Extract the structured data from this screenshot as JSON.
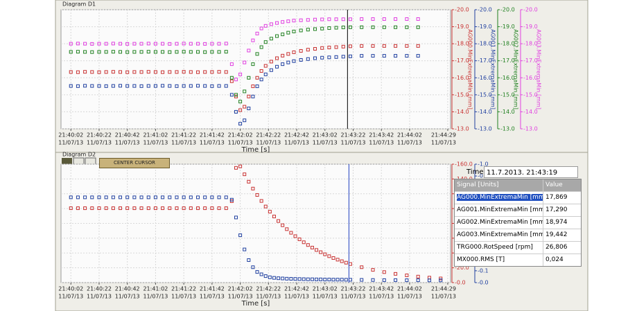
{
  "chart_data": [
    {
      "type": "scatter",
      "title": "Diagram D1",
      "xlabel": "Time [s]",
      "grid": true,
      "cursor": 78198,
      "xlim": [
        77995,
        78271
      ],
      "xticks": [
        {
          "value": 78002,
          "label": "21:40:02",
          "date": "11/07/13"
        },
        {
          "value": 78022,
          "label": "21:40:22",
          "date": "11/07/13"
        },
        {
          "value": 78042,
          "label": "21:40:42",
          "date": "11/07/13"
        },
        {
          "value": 78062,
          "label": "21:41:02",
          "date": "11/07/13"
        },
        {
          "value": 78082,
          "label": "21:41:22",
          "date": "11/07/13"
        },
        {
          "value": 78102,
          "label": "21:41:42",
          "date": "11/07/13"
        },
        {
          "value": 78122,
          "label": "21:42:02",
          "date": "11/07/13"
        },
        {
          "value": 78142,
          "label": "21:42:22",
          "date": "11/07/13"
        },
        {
          "value": 78162,
          "label": "21:42:42",
          "date": "11/07/13"
        },
        {
          "value": 78182,
          "label": "21:43:02",
          "date": "11/07/13"
        },
        {
          "value": 78202,
          "label": "21:43:22",
          "date": "11/07/13"
        },
        {
          "value": 78222,
          "label": "21:43:42",
          "date": "11/07/13"
        },
        {
          "value": 78242,
          "label": "21:44:02",
          "date": "11/07/13"
        },
        {
          "value": 78269,
          "label": "21:44:29",
          "date": "11/07/13"
        }
      ],
      "x": [
        78002,
        78007,
        78012,
        78017,
        78022,
        78027,
        78032,
        78037,
        78042,
        78047,
        78052,
        78057,
        78062,
        78067,
        78072,
        78077,
        78082,
        78087,
        78092,
        78097,
        78102,
        78107,
        78112,
        78116,
        78119,
        78122,
        78125,
        78128,
        78131,
        78134,
        78137,
        78140,
        78144,
        78148,
        78152,
        78156,
        78160,
        78165,
        78170,
        78175,
        78180,
        78185,
        78190,
        78195,
        78200,
        78208,
        78216,
        78224,
        78232,
        78240,
        78248
      ],
      "series": [
        {
          "name": "AG000.MinExtremaMin [mm]",
          "color": "#c83232",
          "ylim": [
            -13,
            -20
          ],
          "yticks": [
            {
              "value": -20,
              "label": "-20.0"
            },
            {
              "value": -19,
              "label": "-19.0"
            },
            {
              "value": -18,
              "label": "-18.0"
            },
            {
              "value": -17,
              "label": "-17.0"
            },
            {
              "value": -16,
              "label": "-16.0"
            },
            {
              "value": -15,
              "label": "-15.0"
            },
            {
              "value": -14,
              "label": "-14.0"
            },
            {
              "value": -13,
              "label": "-13.0"
            }
          ],
          "values": [
            -16.34,
            -16.33,
            -16.35,
            -16.34,
            -16.33,
            -16.34,
            -16.35,
            -16.34,
            -16.33,
            -16.34,
            -16.34,
            -16.35,
            -16.34,
            -16.33,
            -16.34,
            -16.34,
            -16.35,
            -16.34,
            -16.33,
            -16.34,
            -16.34,
            -16.35,
            -16.34,
            -15.8,
            -14.9,
            -14.1,
            -14.3,
            -14.9,
            -15.5,
            -16.0,
            -16.4,
            -16.7,
            -16.95,
            -17.15,
            -17.3,
            -17.4,
            -17.5,
            -17.58,
            -17.65,
            -17.7,
            -17.75,
            -17.78,
            -17.8,
            -17.83,
            -17.85,
            -17.87,
            -17.87,
            -17.87,
            -17.87,
            -17.87,
            -17.87
          ]
        },
        {
          "name": "AG001.MinExtremaMin [mm]",
          "color": "#2040a0",
          "ylim": [
            -13,
            -20
          ],
          "yticks": [
            {
              "value": -20,
              "label": "-20.0"
            },
            {
              "value": -19,
              "label": "-19.0"
            },
            {
              "value": -18,
              "label": "-18.0"
            },
            {
              "value": -17,
              "label": "-17.0"
            },
            {
              "value": -16,
              "label": "-16.0"
            },
            {
              "value": -15,
              "label": "-15.0"
            },
            {
              "value": -14,
              "label": "-14.0"
            },
            {
              "value": -13,
              "label": "-13.0"
            }
          ],
          "values": [
            -15.52,
            -15.51,
            -15.53,
            -15.52,
            -15.52,
            -15.51,
            -15.52,
            -15.53,
            -15.52,
            -15.52,
            -15.51,
            -15.52,
            -15.52,
            -15.53,
            -15.52,
            -15.51,
            -15.52,
            -15.52,
            -15.53,
            -15.52,
            -15.51,
            -15.52,
            -15.52,
            -15.0,
            -14.0,
            -13.3,
            -13.5,
            -14.2,
            -14.9,
            -15.5,
            -15.9,
            -16.2,
            -16.45,
            -16.65,
            -16.8,
            -16.9,
            -16.98,
            -17.05,
            -17.1,
            -17.15,
            -17.18,
            -17.2,
            -17.22,
            -17.24,
            -17.26,
            -17.29,
            -17.29,
            -17.29,
            -17.29,
            -17.29,
            -17.29
          ]
        },
        {
          "name": "AG002.MinExtremaMin [mm]",
          "color": "#208020",
          "ylim": [
            -13,
            -20
          ],
          "yticks": [
            {
              "value": -20,
              "label": "-20.0"
            },
            {
              "value": -19,
              "label": "-19.0"
            },
            {
              "value": -18,
              "label": "-18.0"
            },
            {
              "value": -17,
              "label": "-17.0"
            },
            {
              "value": -16,
              "label": "-16.0"
            },
            {
              "value": -15,
              "label": "-15.0"
            },
            {
              "value": -14,
              "label": "-14.0"
            },
            {
              "value": -13,
              "label": "-13.0"
            }
          ],
          "values": [
            -17.52,
            -17.53,
            -17.52,
            -17.51,
            -17.52,
            -17.52,
            -17.53,
            -17.52,
            -17.51,
            -17.52,
            -17.52,
            -17.53,
            -17.52,
            -17.52,
            -17.51,
            -17.52,
            -17.53,
            -17.52,
            -17.52,
            -17.51,
            -17.52,
            -17.52,
            -17.53,
            -16.0,
            -15.0,
            -14.6,
            -15.2,
            -16.0,
            -16.8,
            -17.4,
            -17.8,
            -18.1,
            -18.3,
            -18.45,
            -18.55,
            -18.65,
            -18.72,
            -18.78,
            -18.83,
            -18.86,
            -18.89,
            -18.92,
            -18.94,
            -18.96,
            -18.97,
            -18.97,
            -18.97,
            -18.97,
            -18.97,
            -18.97,
            -18.97
          ]
        },
        {
          "name": "AG003.MinExtremaMin [mm]",
          "color": "#e040e0",
          "ylim": [
            -13,
            -20
          ],
          "yticks": [
            {
              "value": -20,
              "label": "-20.0"
            },
            {
              "value": -19,
              "label": "-19.0"
            },
            {
              "value": -18,
              "label": "-18.0"
            },
            {
              "value": -17,
              "label": "-17.0"
            },
            {
              "value": -16,
              "label": "-16.0"
            },
            {
              "value": -15,
              "label": "-15.0"
            },
            {
              "value": -14,
              "label": "-14.0"
            },
            {
              "value": -13,
              "label": "-13.0"
            }
          ],
          "values": [
            -18.0,
            -18.01,
            -18.0,
            -17.99,
            -18.0,
            -18.0,
            -18.01,
            -18.0,
            -17.99,
            -18.0,
            -18.0,
            -18.01,
            -18.0,
            -18.0,
            -17.99,
            -18.0,
            -18.01,
            -18.0,
            -18.0,
            -17.99,
            -18.0,
            -18.0,
            -18.01,
            -16.8,
            -15.9,
            -16.2,
            -16.9,
            -17.6,
            -18.2,
            -18.6,
            -18.9,
            -19.05,
            -19.15,
            -19.22,
            -19.28,
            -19.32,
            -19.36,
            -19.38,
            -19.4,
            -19.42,
            -19.43,
            -19.44,
            -19.44,
            -19.44,
            -19.44,
            -19.45,
            -19.45,
            -19.45,
            -19.45,
            -19.45,
            -19.45
          ]
        }
      ]
    },
    {
      "type": "scatter",
      "title": "Diagram D2",
      "button": "CENTER CURSOR",
      "xlabel": "Time [s]",
      "grid": true,
      "cursor": 78199,
      "xlim": [
        77995,
        78271
      ],
      "xticks": [
        {
          "value": 78002,
          "label": "21:40:02",
          "date": "11/07/13"
        },
        {
          "value": 78022,
          "label": "21:40:22",
          "date": "11/07/13"
        },
        {
          "value": 78042,
          "label": "21:40:42",
          "date": "11/07/13"
        },
        {
          "value": 78062,
          "label": "21:41:02",
          "date": "11/07/13"
        },
        {
          "value": 78082,
          "label": "21:41:22",
          "date": "11/07/13"
        },
        {
          "value": 78102,
          "label": "21:41:42",
          "date": "11/07/13"
        },
        {
          "value": 78122,
          "label": "21:42:02",
          "date": "11/07/13"
        },
        {
          "value": 78142,
          "label": "21:42:22",
          "date": "11/07/13"
        },
        {
          "value": 78162,
          "label": "21:42:42",
          "date": "11/07/13"
        },
        {
          "value": 78182,
          "label": "21:43:02",
          "date": "11/07/13"
        },
        {
          "value": 78202,
          "label": "21:43:22",
          "date": "11/07/13"
        },
        {
          "value": 78222,
          "label": "21:43:42",
          "date": "11/07/13"
        },
        {
          "value": 78242,
          "label": "21:44:02",
          "date": "11/07/13"
        },
        {
          "value": 78269,
          "label": "21:44:29",
          "date": "11/07/13"
        }
      ],
      "x": [
        78002,
        78007,
        78012,
        78017,
        78022,
        78027,
        78032,
        78037,
        78042,
        78047,
        78052,
        78057,
        78062,
        78067,
        78072,
        78077,
        78082,
        78087,
        78092,
        78097,
        78102,
        78107,
        78112,
        78116,
        78119,
        78122,
        78125,
        78128,
        78131,
        78134,
        78137,
        78140,
        78143,
        78146,
        78149,
        78152,
        78155,
        78158,
        78161,
        78164,
        78167,
        78170,
        78173,
        78176,
        78179,
        78182,
        78185,
        78188,
        78191,
        78194,
        78197,
        78200,
        78208,
        78216,
        78224,
        78232,
        78240,
        78248,
        78256,
        78264
      ],
      "series": [
        {
          "color": "#c83232",
          "ylim": [
            0,
            -160
          ],
          "yticks": [
            {
              "value": -160,
              "label": "-160.0"
            },
            {
              "value": -140,
              "label": "-140.0"
            },
            {
              "value": -120,
              "label": "-120.0"
            },
            {
              "value": -100,
              "label": "-100.0"
            },
            {
              "value": -80,
              "label": "-80.0"
            },
            {
              "value": -60,
              "label": "-60.0"
            },
            {
              "value": -40,
              "label": "-40.0"
            },
            {
              "value": -20,
              "label": "-20.0"
            },
            {
              "value": 0,
              "label": "-0.0"
            }
          ],
          "values": [
            -100.5,
            -100.5,
            -100.5,
            -100.5,
            -100.5,
            -100.5,
            -100.5,
            -100.5,
            -100.5,
            -100.5,
            -100.5,
            -100.5,
            -100.5,
            -100.5,
            -100.5,
            -100.5,
            -100.5,
            -100.5,
            -100.5,
            -100.5,
            -100.5,
            -100.5,
            -100.5,
            -110,
            -155,
            -157,
            -146.3,
            -136.3,
            -127.0,
            -118.4,
            -110.3,
            -102.8,
            -95.8,
            -89.3,
            -83.2,
            -77.5,
            -72.2,
            -67.3,
            -62.7,
            -58.5,
            -54.5,
            -50.8,
            -47.3,
            -44.1,
            -41.1,
            -38.3,
            -35.7,
            -33.2,
            -31.0,
            -28.9,
            -26.9,
            -25.1,
            -20.8,
            -17.2,
            -14.2,
            -11.8,
            -9.8,
            -8.1,
            -6.7,
            -5.6
          ]
        },
        {
          "color": "#2040a0",
          "ylim": [
            0,
            -1
          ],
          "yticks": [
            {
              "value": -1,
              "label": "-1.0"
            },
            -0.9,
            -0.8,
            -0.7,
            -0.6,
            -0.5,
            -0.4,
            -0.3,
            -0.2,
            -0.1,
            {
              "value": 0,
              "label": "-0.0"
            }
          ],
          "values": [
            -0.72,
            -0.72,
            -0.72,
            -0.72,
            -0.72,
            -0.72,
            -0.72,
            -0.72,
            -0.72,
            -0.72,
            -0.72,
            -0.72,
            -0.72,
            -0.72,
            -0.72,
            -0.72,
            -0.72,
            -0.72,
            -0.72,
            -0.72,
            -0.72,
            -0.72,
            -0.72,
            -0.7,
            -0.55,
            -0.4,
            -0.28,
            -0.19,
            -0.13,
            -0.09,
            -0.07,
            -0.055,
            -0.045,
            -0.04,
            -0.037,
            -0.035,
            -0.033,
            -0.032,
            -0.031,
            -0.03,
            -0.029,
            -0.028,
            -0.028,
            -0.027,
            -0.027,
            -0.026,
            -0.026,
            -0.025,
            -0.025,
            -0.025,
            -0.024,
            -0.024,
            -0.023,
            -0.022,
            -0.021,
            -0.021,
            -0.02,
            -0.02,
            -0.019,
            -0.019
          ]
        }
      ]
    }
  ],
  "panel": {
    "time_label": "Time",
    "time": "11.7.2013. 21:43:19",
    "selected": 0,
    "columns": [
      "Signal [Units]",
      "Value"
    ],
    "rows": [
      [
        "AG000.MinExtremaMin [mm]",
        "17,869"
      ],
      [
        "AG001.MinExtremaMin [mm]",
        "17,290"
      ],
      [
        "AG002.MinExtremaMin [mm]",
        "18,974"
      ],
      [
        "AG003.MinExtremaMin [mm]",
        "19,442"
      ],
      [
        "TRG000.RotSpeed [rpm]",
        "26,806"
      ],
      [
        "MX000.RMS [T]",
        "0,024"
      ]
    ]
  }
}
